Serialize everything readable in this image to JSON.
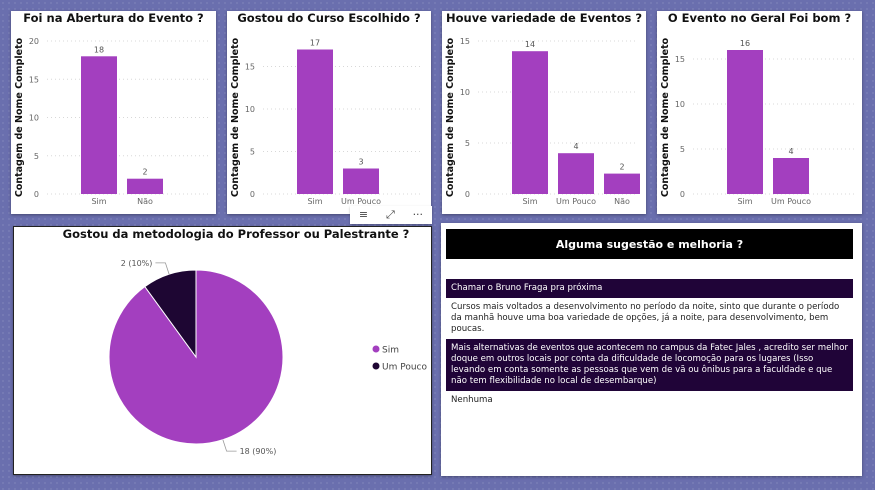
{
  "charts": [
    {
      "title": "Foi na Abertura do Evento ?",
      "ylabel": "Contagem de Nome Completo",
      "yticks": [
        0,
        5,
        10,
        15,
        20
      ],
      "ymax": 20,
      "categories": [
        "Sim",
        "Não"
      ],
      "values": [
        18,
        2
      ]
    },
    {
      "title": "Gostou do Curso Escolhido ?",
      "ylabel": "Contagem de Nome Completo",
      "yticks": [
        0,
        5,
        10,
        15
      ],
      "ymax": 18,
      "categories": [
        "Sim",
        "Um Pouco"
      ],
      "values": [
        17,
        3
      ]
    },
    {
      "title": "Houve variedade de Eventos ?",
      "ylabel": "Contagem de Nome Completo",
      "yticks": [
        0,
        5,
        10,
        15
      ],
      "ymax": 15,
      "categories": [
        "Sim",
        "Um Pouco",
        "Não"
      ],
      "values": [
        14,
        4,
        2
      ]
    },
    {
      "title": "O Evento no Geral Foi bom ?",
      "ylabel": "Contagem de Nome Completo",
      "yticks": [
        0,
        5,
        10,
        15
      ],
      "ymax": 17,
      "categories": [
        "Sim",
        "Um Pouco"
      ],
      "values": [
        16,
        4
      ]
    }
  ],
  "pie": {
    "title": "Gostou da metodologia do Professor ou Palestrante ?",
    "slices": [
      {
        "name": "Sim",
        "value": 18,
        "label": "18 (90%)",
        "color": "#a33fbf"
      },
      {
        "name": "Um Pouco",
        "value": 2,
        "label": "2 (10%)",
        "color": "#1e0633"
      }
    ]
  },
  "chart_data": [
    {
      "type": "bar",
      "title": "Foi na Abertura do Evento ?",
      "ylabel": "Contagem de Nome Completo",
      "categories": [
        "Sim",
        "Não"
      ],
      "values": [
        18,
        2
      ],
      "ylim": [
        0,
        20
      ]
    },
    {
      "type": "bar",
      "title": "Gostou do Curso Escolhido ?",
      "ylabel": "Contagem de Nome Completo",
      "categories": [
        "Sim",
        "Um Pouco"
      ],
      "values": [
        17,
        3
      ],
      "ylim": [
        0,
        18
      ]
    },
    {
      "type": "bar",
      "title": "Houve variedade de Eventos ?",
      "ylabel": "Contagem de Nome Completo",
      "categories": [
        "Sim",
        "Um Pouco",
        "Não"
      ],
      "values": [
        14,
        4,
        2
      ],
      "ylim": [
        0,
        15
      ]
    },
    {
      "type": "bar",
      "title": "O Evento no Geral Foi bom ?",
      "ylabel": "Contagem de Nome Completo",
      "categories": [
        "Sim",
        "Um Pouco"
      ],
      "values": [
        16,
        4
      ],
      "ylim": [
        0,
        17
      ]
    },
    {
      "type": "pie",
      "title": "Gostou da metodologia do Professor ou Palestrante ?",
      "categories": [
        "Sim",
        "Um Pouco"
      ],
      "values": [
        18,
        2
      ],
      "legend": "right"
    }
  ],
  "colors": {
    "bar": "#a33fbf",
    "dark": "#1e0633",
    "background": "#6a6fae"
  },
  "toolbar": {
    "filter_icon": "≡",
    "focus_icon": "⤢",
    "more_icon": "···"
  },
  "suggestions": {
    "header": "Alguma sugestão e melhoria ?",
    "rows": [
      "Chamar o Bruno Fraga pra próxima",
      "Cursos mais voltados a desenvolvimento no período da noite, sinto que durante o período da manhã houve uma boa variedade de opções, já a noite, para desenvolvimento, bem poucas.",
      "Mais alternativas de eventos que acontecem no campus da Fatec Jales , acredito ser melhor doque em outros locais por conta da dificuldade de locomoção para os lugares (Isso levando em conta somente as pessoas que vem de vã ou ônibus para a faculdade e que não tem flexibilidade no local de desembarque)",
      "Nenhuma"
    ]
  }
}
